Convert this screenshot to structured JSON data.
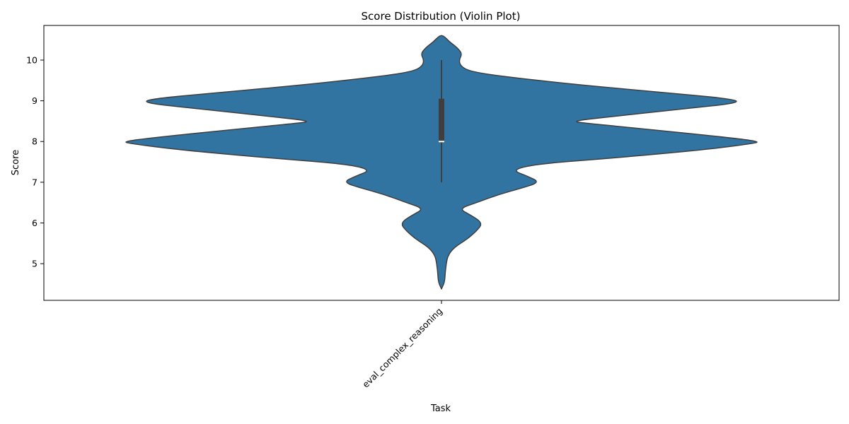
{
  "chart_data": {
    "type": "violin",
    "title": "Score Distribution (Violin Plot)",
    "xlabel": "Task",
    "ylabel": "Score",
    "categories": [
      "eval_complex_reasoning"
    ],
    "ylim": [
      4.1,
      10.85
    ],
    "yticks": [
      5,
      6,
      7,
      8,
      9,
      10
    ],
    "grid": false,
    "colors": {
      "fill": "#3274a1",
      "edge": "#3f3f3f",
      "box": "#3f3f3f",
      "median": "#ffffff"
    },
    "series": [
      {
        "category": "eval_complex_reasoning",
        "density_profile": [
          [
            4.38,
            0.0
          ],
          [
            4.55,
            0.01
          ],
          [
            4.8,
            0.012
          ],
          [
            5.0,
            0.015
          ],
          [
            5.2,
            0.02
          ],
          [
            5.4,
            0.04
          ],
          [
            5.6,
            0.08
          ],
          [
            5.8,
            0.11
          ],
          [
            6.0,
            0.13
          ],
          [
            6.2,
            0.09
          ],
          [
            6.35,
            0.055
          ],
          [
            6.5,
            0.11
          ],
          [
            6.7,
            0.18
          ],
          [
            6.85,
            0.25
          ],
          [
            7.0,
            0.31
          ],
          [
            7.15,
            0.27
          ],
          [
            7.3,
            0.22
          ],
          [
            7.45,
            0.3
          ],
          [
            7.6,
            0.55
          ],
          [
            7.8,
            0.83
          ],
          [
            7.95,
            0.98
          ],
          [
            8.0,
            1.0
          ],
          [
            8.1,
            0.9
          ],
          [
            8.3,
            0.65
          ],
          [
            8.45,
            0.45
          ],
          [
            8.5,
            0.41
          ],
          [
            8.6,
            0.52
          ],
          [
            8.8,
            0.76
          ],
          [
            8.95,
            0.94
          ],
          [
            9.05,
            0.91
          ],
          [
            9.2,
            0.7
          ],
          [
            9.4,
            0.42
          ],
          [
            9.6,
            0.19
          ],
          [
            9.72,
            0.09
          ],
          [
            9.85,
            0.06
          ],
          [
            10.0,
            0.055
          ],
          [
            10.15,
            0.065
          ],
          [
            10.3,
            0.05
          ],
          [
            10.45,
            0.025
          ],
          [
            10.6,
            0.006
          ]
        ],
        "box": {
          "whisker_low": 7.0,
          "q1": 8.0,
          "median": 8.0,
          "q3": 9.05,
          "whisker_high": 10.0
        }
      }
    ]
  }
}
